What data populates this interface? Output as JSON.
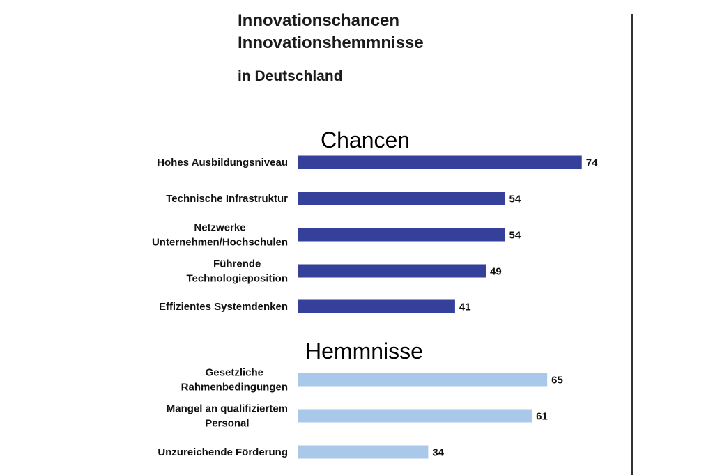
{
  "header": {
    "title_line1": "Innovationschancen",
    "title_line2": "Innovationshemmnisse",
    "subtitle": "in Deutschland"
  },
  "colors": {
    "chancen_bar": "#34409a",
    "hemmnisse_bar": "#a9c8ea"
  },
  "chart_data": {
    "type": "bar",
    "orientation": "horizontal",
    "title": "Innovationschancen Innovationshemmnisse",
    "subtitle": "in Deutschland",
    "grid": false,
    "legend": "none",
    "groups": [
      {
        "name": "Chancen",
        "categories": [
          [
            "Hohes Ausbildungsniveau"
          ],
          [
            "Technische Infrastruktur"
          ],
          [
            "Netzwerke",
            "Unternehmen/Hochschulen"
          ],
          [
            "Führende",
            "Technologieposition"
          ],
          [
            "Effizientes Systemdenken"
          ]
        ],
        "values": [
          74,
          54,
          54,
          49,
          41
        ]
      },
      {
        "name": "Hemmnisse",
        "categories": [
          [
            "Gesetzliche",
            "Rahmenbedingungen"
          ],
          [
            "Mangel an qualifiziertem",
            "Personal"
          ],
          [
            "Unzureichende Förderung"
          ]
        ],
        "values": [
          65,
          61,
          34
        ]
      }
    ]
  }
}
